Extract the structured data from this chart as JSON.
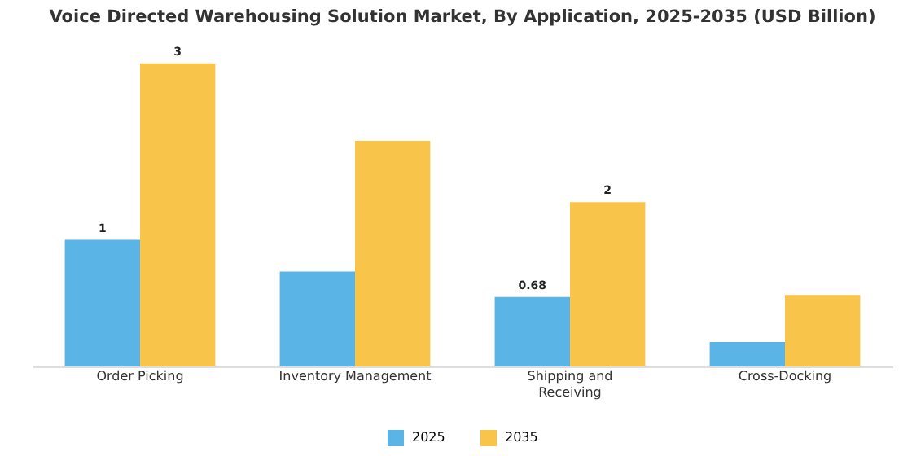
{
  "chart_data": {
    "type": "bar",
    "title": "Voice Directed Warehousing Solution Market, By Application, 2025-2035 (USD Billion)",
    "categories": [
      "Order Picking",
      "Inventory Management",
      "Shipping and Receiving",
      "Cross-Docking"
    ],
    "series": [
      {
        "name": "2025",
        "color": "#5ab4e5",
        "values": [
          1.24,
          0.93,
          0.68,
          0.24
        ],
        "value_labels": [
          "1",
          null,
          "0.68",
          null
        ]
      },
      {
        "name": "2035",
        "color": "#f9c44a",
        "values": [
          2.97,
          2.21,
          1.61,
          0.7
        ],
        "value_labels": [
          "3",
          null,
          "2",
          null
        ]
      }
    ],
    "legend": "bottom"
  }
}
